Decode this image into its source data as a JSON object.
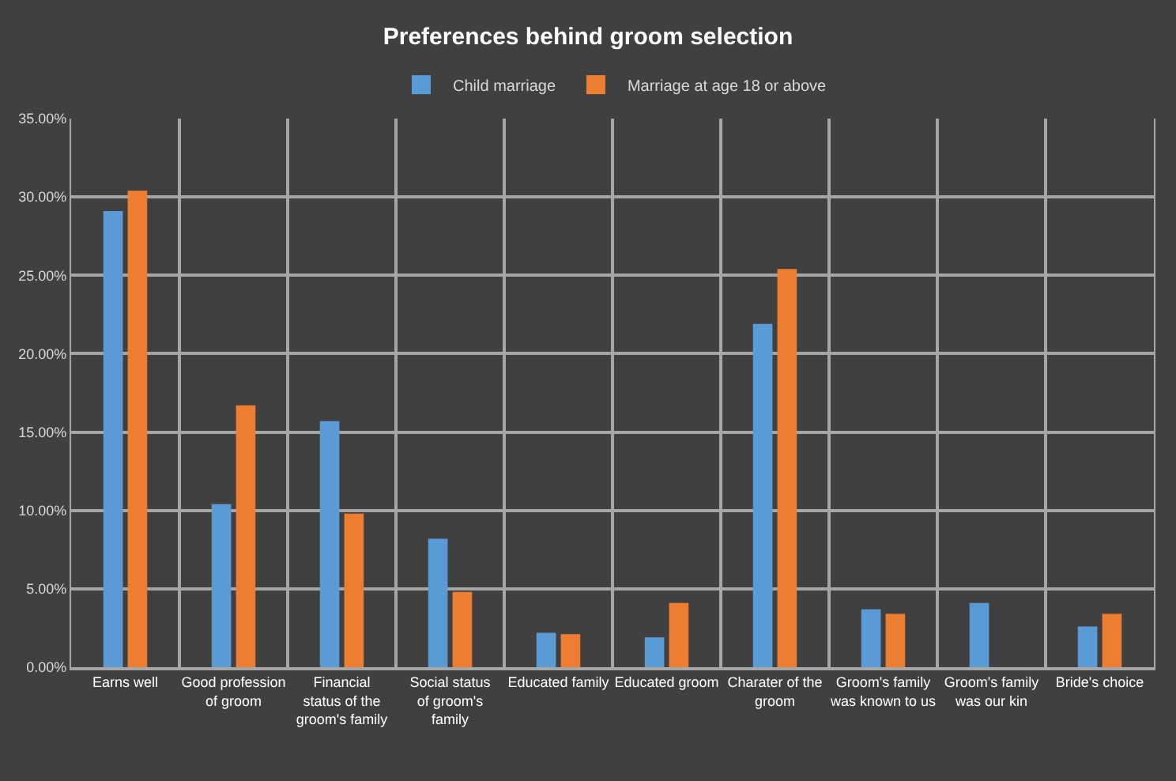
{
  "chart_data": {
    "type": "bar",
    "title": "Preferences behind groom selection",
    "categories": [
      "Earns well",
      "Good profession of groom",
      "Financial status of the groom's family",
      "Social status of groom's family",
      "Educated family",
      "Educated groom",
      "Charater of the groom",
      "Groom's family was known to us",
      "Groom's family was our kin",
      "Bride's choice"
    ],
    "series": [
      {
        "name": "Child marriage",
        "color": "#5b9bd5",
        "values": [
          29.1,
          10.4,
          15.7,
          8.2,
          2.2,
          1.9,
          21.9,
          3.7,
          4.1,
          2.6
        ]
      },
      {
        "name": "Marriage at age 18 or above",
        "color": "#ed7d31",
        "values": [
          30.4,
          16.7,
          9.8,
          4.8,
          2.1,
          4.1,
          25.4,
          3.4,
          null,
          3.4
        ]
      }
    ],
    "ylim": [
      0,
      35
    ],
    "yticks": [
      {
        "value": 0,
        "label": "0.00%"
      },
      {
        "value": 5,
        "label": "5.00%"
      },
      {
        "value": 10,
        "label": "10.00%"
      },
      {
        "value": 15,
        "label": "15.00%"
      },
      {
        "value": 20,
        "label": "20.00%"
      },
      {
        "value": 25,
        "label": "25.00%"
      },
      {
        "value": 30,
        "label": "30.00%"
      },
      {
        "value": 35,
        "label": "35.00%"
      }
    ],
    "grid": true,
    "legend": "top"
  }
}
